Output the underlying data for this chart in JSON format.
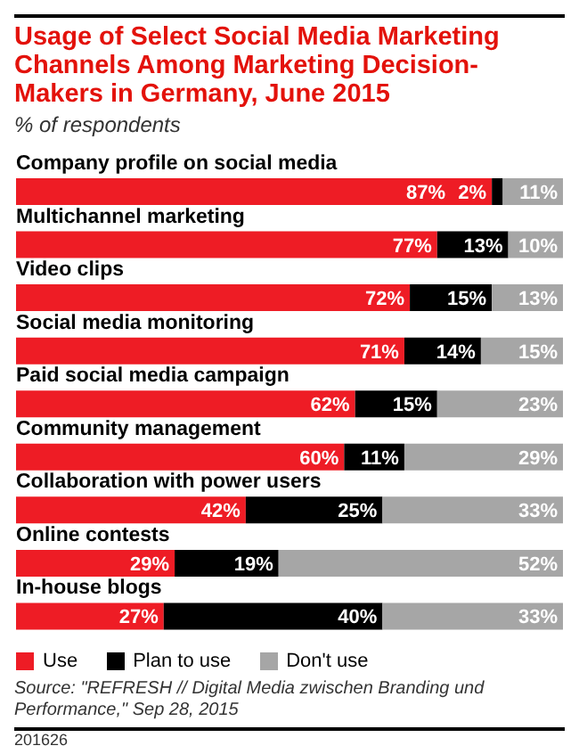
{
  "chart_data": {
    "type": "bar",
    "orientation": "horizontal",
    "stacked": true,
    "title": "Usage of Select Social Media Marketing Channels Among Marketing Decision-Makers in Germany, June 2015",
    "subtitle": "% of respondents",
    "categories": [
      "Company profile on social media",
      "Multichannel marketing",
      "Video clips",
      "Social media monitoring",
      "Paid social media campaign",
      "Community management",
      "Collaboration with power users",
      "Online contests",
      "In-house blogs"
    ],
    "series": [
      {
        "name": "Use",
        "color": "#ee1c25",
        "values": [
          87,
          77,
          72,
          71,
          62,
          60,
          42,
          29,
          27
        ],
        "value_labels": [
          "87%",
          "77%",
          "72%",
          "71%",
          "62%",
          "60%",
          "42%",
          "29%",
          "27%"
        ]
      },
      {
        "name": "Plan to use",
        "color": "#000000",
        "values": [
          2,
          13,
          15,
          14,
          15,
          11,
          25,
          19,
          40
        ],
        "value_labels": [
          "2%",
          "13%",
          "15%",
          "14%",
          "15%",
          "11%",
          "25%",
          "19%",
          "40%"
        ]
      },
      {
        "name": "Don't use",
        "color": "#a6a6a6",
        "values": [
          11,
          10,
          13,
          15,
          23,
          29,
          33,
          52,
          33
        ],
        "value_labels": [
          "11%",
          "10%",
          "13%",
          "15%",
          "23%",
          "29%",
          "33%",
          "52%",
          "33%"
        ]
      }
    ],
    "xlim": [
      0,
      100
    ],
    "tick_labels": false,
    "legend": "bottom left",
    "grid": false,
    "annotations": [
      "Source: \"REFRESH // Digital Media zwischen Branding und Performance,\" Sep 28, 2015",
      "201626"
    ]
  }
}
